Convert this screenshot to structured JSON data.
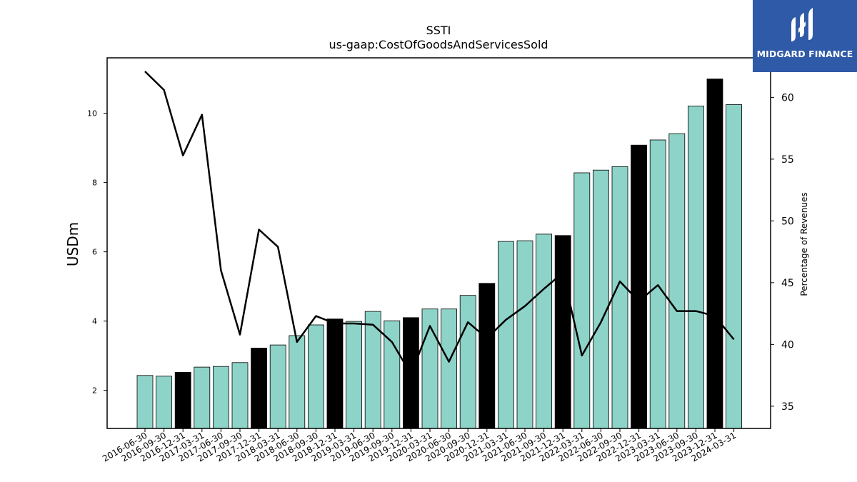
{
  "chart_data": {
    "type": "bar",
    "title": "SSTI",
    "subtitle": "us-gaap:CostOfGoodsAndServicesSold",
    "ylabel": "USDm",
    "y2label": "Percentage of Revenues",
    "ylim": [
      0.9,
      11.6
    ],
    "y2lim": [
      33.2,
      63.2
    ],
    "yticks": [
      2,
      4,
      6,
      8,
      10
    ],
    "y2ticks": [
      35,
      40,
      45,
      50,
      55,
      60
    ],
    "categories": [
      "2016-06-30",
      "2016-09-30",
      "2016-12-31",
      "2017-03-31",
      "2017-06-30",
      "2017-09-30",
      "2017-12-31",
      "2018-03-31",
      "2018-06-30",
      "2018-09-30",
      "2018-12-31",
      "2019-03-31",
      "2019-06-30",
      "2019-09-30",
      "2019-12-31",
      "2020-03-31",
      "2020-06-30",
      "2020-09-30",
      "2020-12-31",
      "2021-03-31",
      "2021-06-30",
      "2021-09-30",
      "2021-12-31",
      "2022-03-31",
      "2022-06-30",
      "2022-09-30",
      "2022-12-31",
      "2023-03-31",
      "2023-06-30",
      "2023-09-30",
      "2023-12-31",
      "2024-03-31"
    ],
    "series": [
      {
        "type": "bar",
        "values": [
          2.43,
          2.41,
          2.52,
          2.67,
          2.69,
          2.8,
          3.22,
          3.31,
          3.58,
          3.89,
          4.06,
          3.99,
          4.28,
          4.01,
          4.1,
          4.35,
          4.35,
          4.74,
          5.09,
          6.3,
          6.32,
          6.51,
          6.47,
          8.28,
          8.36,
          8.46,
          9.08,
          9.23,
          9.41,
          10.21,
          10.99,
          10.25
        ]
      },
      {
        "type": "line",
        "axis": "right",
        "values": [
          62.1,
          60.6,
          55.3,
          58.6,
          46.0,
          40.8,
          49.3,
          47.9,
          40.2,
          42.3,
          41.7,
          41.7,
          41.6,
          40.2,
          37.6,
          41.5,
          38.6,
          41.8,
          40.5,
          42.0,
          43.1,
          44.5,
          45.8,
          39.1,
          41.8,
          45.1,
          43.5,
          44.8,
          42.7,
          42.7,
          42.3,
          40.4
        ]
      }
    ],
    "highlight_color": "#000000",
    "bar_color": "#8dd3c7",
    "line_color": "#000000"
  },
  "logo": {
    "text": "MIDGARD FINANCE",
    "background": "#2f5aa8"
  }
}
